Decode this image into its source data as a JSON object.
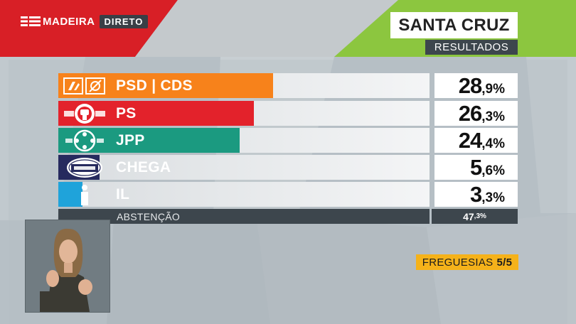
{
  "channel": {
    "name": "MADEIRA",
    "live_label": "DIRETO"
  },
  "header": {
    "title": "SANTA CRUZ",
    "subtitle": "RESULTADOS"
  },
  "results": [
    {
      "party": "PSD | CDS",
      "pct_int": "28",
      "pct_dec": ",9%",
      "value": 28.9,
      "color": "#f7821b",
      "logo_icon": "psd-cds-logo-icon"
    },
    {
      "party": "PS",
      "pct_int": "26",
      "pct_dec": ",3%",
      "value": 26.3,
      "color": "#e3222b",
      "logo_icon": "ps-fist-rose-logo-icon"
    },
    {
      "party": "JPP",
      "pct_int": "24",
      "pct_dec": ",4%",
      "value": 24.4,
      "color": "#1b9a80",
      "logo_icon": "jpp-people-circle-logo-icon"
    },
    {
      "party": "CHEGA",
      "pct_int": "5",
      "pct_dec": ",6%",
      "value": 5.6,
      "color": "#262a5e",
      "logo_icon": "chega-logo-icon"
    },
    {
      "party": "IL",
      "pct_int": "3",
      "pct_dec": ",3%",
      "value": 3.3,
      "color": "#1fa3da",
      "logo_icon": "il-logo-icon"
    }
  ],
  "abstention": {
    "label": "ABSTENÇÃO",
    "pct_int": "47",
    "pct_dec": ",3%",
    "value": 47.3
  },
  "parishes": {
    "label": "FREGUESIAS",
    "count": "5/5"
  }
}
